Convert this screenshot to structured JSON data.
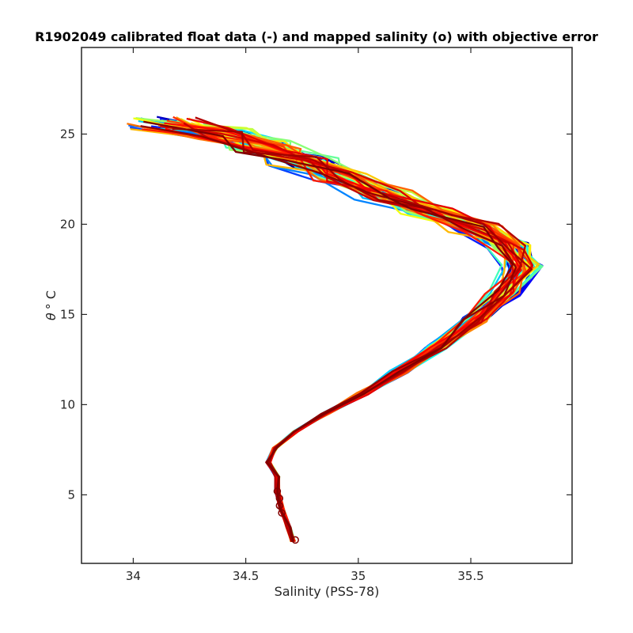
{
  "chart_data": {
    "type": "line",
    "title": "R1902049 calibrated float data (-) and mapped salinity (o) with objective error",
    "xlabel": "Salinity (PSS-78)",
    "ylabel_symbol": "θ",
    "ylabel_unit": "° C",
    "xlim": [
      33.77,
      35.95
    ],
    "ylim": [
      1.2,
      29.8
    ],
    "xticks": [
      34,
      34.5,
      35,
      35.5
    ],
    "xtick_labels": [
      "34",
      "34.5",
      "35",
      "35.5"
    ],
    "yticks": [
      5,
      10,
      15,
      20,
      25
    ],
    "ytick_labels": [
      "5",
      "10",
      "15",
      "20",
      "25"
    ],
    "grid": false,
    "legend": "none",
    "colormap": [
      "#00008f",
      "#0000ff",
      "#0080ff",
      "#00ffff",
      "#80ff80",
      "#ffff00",
      "#ff8000",
      "#ff0000",
      "#800000"
    ],
    "series_count": 60,
    "mean_profile": [
      {
        "s": 34.71,
        "t": 2.4
      },
      {
        "s": 34.69,
        "t": 3.2
      },
      {
        "s": 34.66,
        "t": 4.2
      },
      {
        "s": 34.64,
        "t": 5.2
      },
      {
        "s": 34.64,
        "t": 6.0
      },
      {
        "s": 34.6,
        "t": 6.8
      },
      {
        "s": 34.63,
        "t": 7.6
      },
      {
        "s": 34.72,
        "t": 8.5
      },
      {
        "s": 34.85,
        "t": 9.5
      },
      {
        "s": 35.02,
        "t": 10.6
      },
      {
        "s": 35.18,
        "t": 11.8
      },
      {
        "s": 35.35,
        "t": 13.2
      },
      {
        "s": 35.52,
        "t": 14.7
      },
      {
        "s": 35.65,
        "t": 16.2
      },
      {
        "s": 35.73,
        "t": 17.6
      },
      {
        "s": 35.67,
        "t": 18.8
      },
      {
        "s": 35.52,
        "t": 19.8
      },
      {
        "s": 35.32,
        "t": 20.7
      },
      {
        "s": 35.12,
        "t": 21.6
      },
      {
        "s": 34.92,
        "t": 22.6
      },
      {
        "s": 34.75,
        "t": 23.5
      },
      {
        "s": 34.58,
        "t": 24.3
      },
      {
        "s": 34.4,
        "t": 25.0
      },
      {
        "s": 34.15,
        "t": 25.6
      }
    ],
    "mapped_points": [
      {
        "s": 34.64,
        "t": 5.2
      },
      {
        "s": 34.65,
        "t": 4.8
      },
      {
        "s": 34.65,
        "t": 4.4
      },
      {
        "s": 34.66,
        "t": 4.0
      },
      {
        "s": 34.72,
        "t": 2.5
      }
    ]
  }
}
